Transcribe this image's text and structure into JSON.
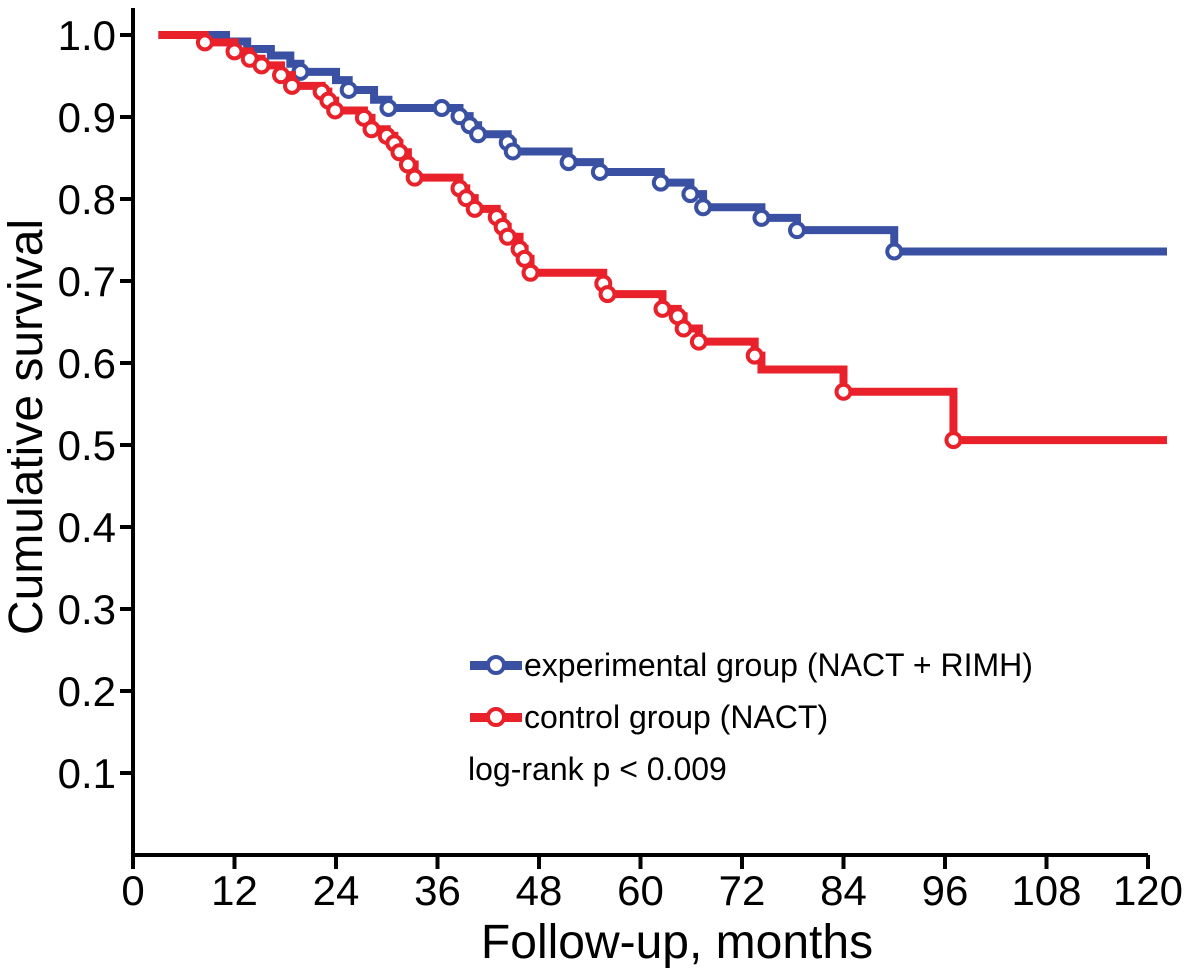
{
  "chart_data": {
    "type": "line",
    "subtype": "kaplan-meier-step-survival",
    "title": "",
    "xlabel": "Follow-up, months",
    "ylabel": "Cumulative survival",
    "xlim": [
      0,
      120
    ],
    "ylim": [
      0,
      1.0
    ],
    "x_ticks": [
      0,
      12,
      24,
      36,
      48,
      60,
      72,
      84,
      96,
      108,
      120
    ],
    "y_ticks": [
      1.0,
      0.9,
      0.8,
      0.7,
      0.6,
      0.5,
      0.4,
      0.3,
      0.2,
      0.1
    ],
    "y_tick_labels": [
      "1.0",
      "0.9",
      "0.8",
      "0.7",
      "0.6",
      "0.5",
      "0.4",
      "0.3",
      "0.2",
      "0.1"
    ],
    "grid": false,
    "legend_position": "inside-lower-right",
    "annotation": "log-rank p < 0.009",
    "axis_color": "#000000",
    "series": [
      {
        "name": "experimental group (NACT + RIMH)",
        "color": "#3A51A3",
        "steps": [
          [
            3,
            1.0
          ],
          [
            11,
            0.992
          ],
          [
            13.5,
            0.983
          ],
          [
            16.3,
            0.975
          ],
          [
            18.6,
            0.965
          ],
          [
            19.8,
            0.955
          ],
          [
            24,
            0.945
          ],
          [
            25.5,
            0.933
          ],
          [
            28.5,
            0.921
          ],
          [
            30.2,
            0.911
          ],
          [
            38.6,
            0.901
          ],
          [
            39.8,
            0.89
          ],
          [
            40.8,
            0.879
          ],
          [
            44.3,
            0.869
          ],
          [
            44.9,
            0.858
          ],
          [
            51.5,
            0.845
          ],
          [
            55.2,
            0.833
          ],
          [
            62.4,
            0.82
          ],
          [
            65.9,
            0.806
          ],
          [
            67.4,
            0.79
          ],
          [
            74.3,
            0.777
          ],
          [
            78.5,
            0.762
          ],
          [
            90,
            0.736
          ]
        ],
        "censors": [
          [
            19.8,
            0.955
          ],
          [
            25.5,
            0.933
          ],
          [
            30.2,
            0.911
          ],
          [
            36.5,
            0.911
          ],
          [
            38.6,
            0.901
          ],
          [
            39.8,
            0.89
          ],
          [
            40.8,
            0.879
          ],
          [
            44.3,
            0.869
          ],
          [
            44.9,
            0.858
          ],
          [
            51.5,
            0.845
          ],
          [
            55.2,
            0.833
          ],
          [
            62.4,
            0.82
          ],
          [
            65.9,
            0.806
          ],
          [
            67.4,
            0.79
          ],
          [
            74.3,
            0.777
          ],
          [
            78.5,
            0.762
          ],
          [
            90,
            0.736
          ]
        ],
        "final_value": 0.736
      },
      {
        "name": "control group (NACT)",
        "color": "#E8212A",
        "steps": [
          [
            3,
            1.0
          ],
          [
            8.5,
            0.991
          ],
          [
            12,
            0.98
          ],
          [
            13.8,
            0.971
          ],
          [
            15.2,
            0.963
          ],
          [
            17.5,
            0.951
          ],
          [
            18.8,
            0.938
          ],
          [
            22.3,
            0.931
          ],
          [
            23.1,
            0.92
          ],
          [
            23.9,
            0.908
          ],
          [
            27.3,
            0.899
          ],
          [
            28.2,
            0.885
          ],
          [
            30,
            0.877
          ],
          [
            30.9,
            0.868
          ],
          [
            31.5,
            0.857
          ],
          [
            32.5,
            0.842
          ],
          [
            33.3,
            0.826
          ],
          [
            38.6,
            0.813
          ],
          [
            39.4,
            0.801
          ],
          [
            40.4,
            0.788
          ],
          [
            43,
            0.778
          ],
          [
            43.7,
            0.766
          ],
          [
            44.3,
            0.754
          ],
          [
            45.7,
            0.739
          ],
          [
            46.3,
            0.727
          ],
          [
            47,
            0.71
          ],
          [
            55.6,
            0.697
          ],
          [
            56.1,
            0.684
          ],
          [
            62.6,
            0.666
          ],
          [
            64.4,
            0.657
          ],
          [
            65.1,
            0.642
          ],
          [
            66.9,
            0.626
          ],
          [
            73.5,
            0.609
          ],
          [
            74.3,
            0.592
          ],
          [
            84,
            0.565
          ],
          [
            97,
            0.506
          ]
        ],
        "censors": [
          [
            8.5,
            0.991
          ],
          [
            12,
            0.98
          ],
          [
            13.8,
            0.971
          ],
          [
            15.2,
            0.963
          ],
          [
            17.5,
            0.951
          ],
          [
            18.8,
            0.938
          ],
          [
            22.3,
            0.931
          ],
          [
            23.1,
            0.92
          ],
          [
            23.9,
            0.908
          ],
          [
            27.3,
            0.899
          ],
          [
            28.2,
            0.885
          ],
          [
            30,
            0.877
          ],
          [
            30.9,
            0.868
          ],
          [
            31.5,
            0.857
          ],
          [
            32.5,
            0.842
          ],
          [
            33.3,
            0.826
          ],
          [
            38.6,
            0.813
          ],
          [
            39.4,
            0.801
          ],
          [
            40.4,
            0.788
          ],
          [
            43,
            0.778
          ],
          [
            43.7,
            0.766
          ],
          [
            44.3,
            0.754
          ],
          [
            45.7,
            0.739
          ],
          [
            46.3,
            0.727
          ],
          [
            47,
            0.71
          ],
          [
            55.6,
            0.697
          ],
          [
            56.1,
            0.684
          ],
          [
            62.6,
            0.666
          ],
          [
            64.4,
            0.657
          ],
          [
            65.1,
            0.642
          ],
          [
            66.9,
            0.626
          ],
          [
            73.5,
            0.609
          ],
          [
            84,
            0.565
          ],
          [
            97,
            0.506
          ]
        ],
        "final_value": 0.506
      }
    ]
  }
}
